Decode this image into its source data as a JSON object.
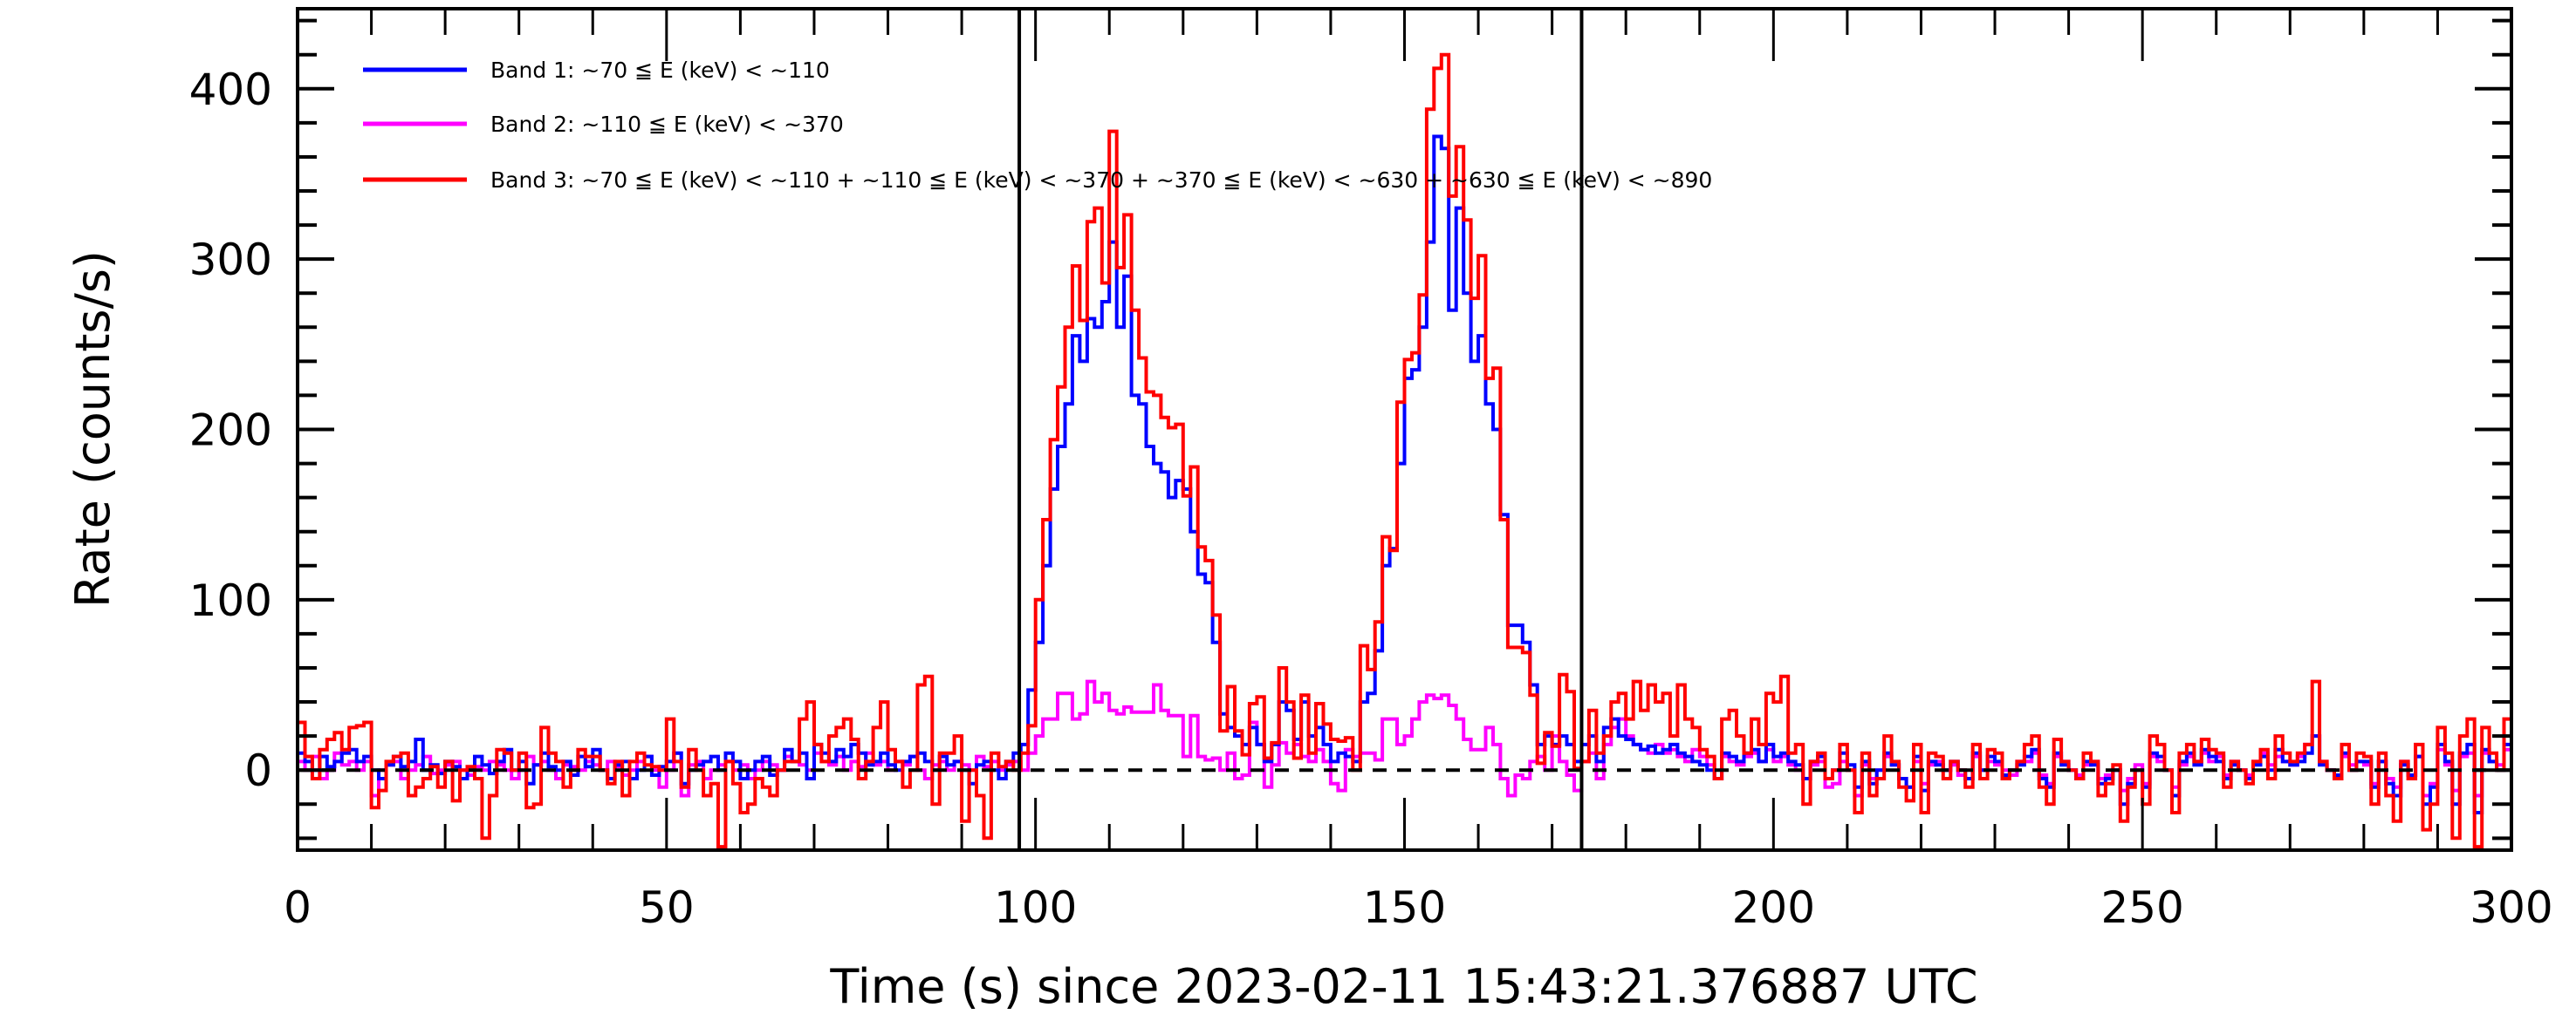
{
  "chart_data": {
    "type": "line",
    "style": "histogram-steps",
    "title": "",
    "xlabel": "Time (s) since 2023-02-11 15:43:21.376887 UTC",
    "ylabel": "Rate (counts/s)",
    "xlim": [
      0,
      300
    ],
    "ylim": [
      -47,
      447
    ],
    "xticks": [
      0,
      50,
      100,
      150,
      200,
      250,
      300
    ],
    "xtick_labels": [
      "0",
      "50",
      "100",
      "150",
      "200",
      "250",
      "300"
    ],
    "yticks": [
      0,
      100,
      200,
      300,
      400
    ],
    "ytick_labels": [
      "0",
      "100",
      "200",
      "300",
      "400"
    ],
    "x_minor_step": 10,
    "y_minor_step": 20,
    "grid": false,
    "legend_position": "top-left",
    "bin_width": 1,
    "x_start": 0,
    "hlines": [
      {
        "y": 0,
        "style": "dashed",
        "color": "#000000"
      }
    ],
    "vlines": [
      {
        "x": 97.8,
        "color": "#000000"
      },
      {
        "x": 174.0,
        "color": "#000000"
      }
    ],
    "series": [
      {
        "name": "Band 1: ~70 ≦ E (keV) < ~110",
        "color": "#0000FF",
        "values": [
          10,
          5,
          0,
          8,
          2,
          5,
          10,
          12,
          5,
          8,
          0,
          -5,
          3,
          8,
          2,
          5,
          18,
          0,
          3,
          -2,
          5,
          2,
          -5,
          0,
          8,
          3,
          -2,
          5,
          12,
          0,
          5,
          -8,
          3,
          10,
          2,
          0,
          5,
          -3,
          8,
          2,
          12,
          0,
          -5,
          3,
          5,
          -5,
          0,
          8,
          -3,
          2,
          5,
          10,
          -8,
          0,
          3,
          5,
          8,
          0,
          10,
          5,
          -5,
          0,
          5,
          8,
          -3,
          0,
          12,
          5,
          10,
          -5,
          15,
          10,
          5,
          12,
          8,
          15,
          10,
          3,
          5,
          10,
          3,
          0,
          5,
          8,
          10,
          5,
          0,
          8,
          3,
          5,
          0,
          -8,
          3,
          5,
          0,
          -5,
          5,
          10,
          15,
          47,
          75,
          120,
          165,
          190,
          215,
          255,
          240,
          265,
          260,
          275,
          310,
          260,
          290,
          220,
          215,
          190,
          180,
          175,
          160,
          170,
          165,
          140,
          115,
          110,
          75,
          33,
          25,
          20,
          15,
          25,
          15,
          5,
          15,
          40,
          35,
          18,
          40,
          20,
          25,
          15,
          5,
          10,
          8,
          5,
          40,
          45,
          70,
          120,
          130,
          180,
          230,
          235,
          260,
          310,
          372,
          365,
          270,
          330,
          280,
          240,
          255,
          215,
          200,
          150,
          85,
          85,
          75,
          50,
          15,
          20,
          15,
          20,
          15,
          5,
          15,
          20,
          5,
          25,
          30,
          20,
          18,
          15,
          12,
          14,
          10,
          12,
          15,
          10,
          8,
          5,
          3,
          0,
          -5,
          10,
          8,
          5,
          10,
          12,
          5,
          15,
          8,
          10,
          5,
          3,
          -5,
          5,
          8,
          -5,
          0,
          10,
          3,
          -10,
          5,
          -8,
          0,
          10,
          3,
          -5,
          -10,
          8,
          -12,
          5,
          3,
          0,
          5,
          0,
          -5,
          10,
          0,
          8,
          5,
          -3,
          0,
          3,
          8,
          12,
          -5,
          -10,
          10,
          3,
          0,
          -5,
          5,
          3,
          -8,
          -5,
          0,
          -20,
          -8,
          0,
          -10,
          10,
          8,
          0,
          -15,
          5,
          10,
          3,
          12,
          8,
          5,
          -5,
          3,
          0,
          -5,
          3,
          8,
          0,
          12,
          5,
          3,
          5,
          10,
          20,
          3,
          0,
          -3,
          10,
          0,
          5,
          5,
          -10,
          5,
          -8,
          -15,
          3,
          -3,
          8,
          -20,
          -10,
          15,
          5,
          -20,
          10,
          15,
          -25,
          12,
          5,
          0,
          15
        ]
      },
      {
        "name": "Band 2: ~110 ≦ E (keV) < ~370",
        "color": "#FF00FF",
        "values": [
          5,
          0,
          8,
          -5,
          0,
          10,
          3,
          5,
          0,
          5,
          -15,
          0,
          3,
          5,
          -5,
          0,
          3,
          8,
          -2,
          0,
          3,
          5,
          0,
          -3,
          2,
          0,
          5,
          3,
          0,
          -5,
          0,
          8,
          3,
          5,
          0,
          -5,
          3,
          2,
          0,
          5,
          3,
          0,
          5,
          2,
          -3,
          0,
          5,
          8,
          0,
          -10,
          0,
          10,
          -15,
          3,
          5,
          -5,
          0,
          3,
          5,
          0,
          3,
          -5,
          0,
          5,
          3,
          0,
          8,
          5,
          3,
          0,
          10,
          5,
          3,
          8,
          0,
          5,
          2,
          10,
          3,
          5,
          0,
          5,
          3,
          8,
          0,
          -5,
          3,
          5,
          0,
          5,
          3,
          0,
          8,
          2,
          5,
          0,
          3,
          5,
          0,
          10,
          20,
          30,
          30,
          45,
          45,
          30,
          33,
          52,
          40,
          45,
          35,
          33,
          37,
          34,
          34,
          34,
          50,
          35,
          32,
          32,
          8,
          32,
          8,
          6,
          7,
          0,
          10,
          -5,
          -3,
          28,
          15,
          -10,
          3,
          16,
          10,
          15,
          8,
          5,
          12,
          5,
          -8,
          -12,
          12,
          8,
          10,
          10,
          6,
          30,
          30,
          15,
          20,
          30,
          40,
          44,
          42,
          44,
          38,
          30,
          18,
          12,
          12,
          25,
          15,
          -5,
          -15,
          -3,
          -5,
          5,
          8,
          0,
          20,
          5,
          -3,
          -12,
          5,
          10,
          -5,
          15,
          25,
          30,
          20,
          15,
          12,
          10,
          15,
          10,
          12,
          8,
          5,
          12,
          8,
          3,
          -5,
          8,
          5,
          3,
          8,
          10,
          5,
          12,
          5,
          8,
          3,
          0,
          -5,
          3,
          5,
          -10,
          -8,
          5,
          0,
          -15,
          3,
          -5,
          0,
          8,
          3,
          -5,
          -10,
          5,
          -8,
          3,
          5,
          0,
          3,
          -3,
          -5,
          8,
          0,
          5,
          3,
          0,
          -3,
          5,
          5,
          10,
          -3,
          -8,
          8,
          5,
          0,
          -3,
          3,
          5,
          -5,
          -3,
          0,
          -12,
          -5,
          3,
          -8,
          8,
          5,
          0,
          -10,
          3,
          8,
          5,
          10,
          5,
          8,
          -3,
          5,
          0,
          -3,
          5,
          10,
          3,
          8,
          5,
          3,
          8,
          15,
          20,
          5,
          0,
          -5,
          8,
          3,
          5,
          3,
          -8,
          5,
          -5,
          -10,
          5,
          -3,
          8,
          -15,
          -8,
          12,
          3,
          -12,
          8,
          10,
          -15,
          10,
          5,
          3,
          12
        ]
      },
      {
        "name": "Band 3: ~70 ≦ E (keV) < ~110 + ~110 ≦ E (keV) < ~370 + ~370 ≦ E (keV) < ~630 + ~630 ≦ E (keV) < ~890",
        "color": "#FF0000",
        "values": [
          28,
          8,
          -5,
          12,
          18,
          22,
          12,
          25,
          26,
          28,
          -22,
          -12,
          5,
          8,
          10,
          -15,
          -10,
          -5,
          2,
          -10,
          5,
          -18,
          0,
          2,
          -5,
          -40,
          -15,
          12,
          10,
          0,
          10,
          -22,
          -20,
          25,
          10,
          5,
          -10,
          0,
          12,
          8,
          8,
          0,
          -8,
          5,
          -15,
          5,
          10,
          3,
          2,
          0,
          30,
          5,
          -10,
          12,
          0,
          -15,
          -8,
          -45,
          5,
          -8,
          -25,
          -20,
          -5,
          -10,
          -15,
          0,
          5,
          5,
          30,
          40,
          15,
          5,
          20,
          25,
          30,
          18,
          -5,
          5,
          25,
          40,
          12,
          5,
          -10,
          0,
          50,
          55,
          -20,
          10,
          10,
          20,
          -30,
          0,
          -15,
          -40,
          10,
          2,
          5,
          0,
          10,
          26,
          100,
          147,
          194,
          225,
          260,
          296,
          264,
          322,
          330,
          286,
          375,
          295,
          326,
          270,
          242,
          222,
          220,
          207,
          201,
          203,
          161,
          178,
          131,
          123,
          91,
          23,
          49,
          23,
          9,
          39,
          43,
          7,
          16,
          60,
          40,
          7,
          44,
          10,
          39,
          27,
          18,
          17,
          19,
          0,
          73,
          59,
          87,
          137,
          129,
          216,
          241,
          245,
          279,
          388,
          412,
          420,
          337,
          366,
          323,
          277,
          302,
          230,
          236,
          147,
          72,
          72,
          69,
          44,
          4,
          22,
          14,
          56,
          46,
          1,
          5,
          35,
          10,
          20,
          40,
          45,
          30,
          52,
          35,
          50,
          40,
          45,
          20,
          50,
          30,
          25,
          12,
          8,
          -5,
          30,
          35,
          20,
          10,
          30,
          15,
          45,
          40,
          55,
          10,
          15,
          -20,
          5,
          10,
          -5,
          0,
          15,
          0,
          -25,
          10,
          -15,
          -5,
          20,
          5,
          -10,
          -18,
          15,
          -25,
          10,
          8,
          -5,
          5,
          0,
          -10,
          15,
          -5,
          12,
          10,
          -5,
          0,
          5,
          15,
          20,
          -10,
          -20,
          18,
          5,
          0,
          -5,
          10,
          5,
          -15,
          -8,
          3,
          -30,
          -10,
          0,
          -20,
          20,
          15,
          0,
          -25,
          10,
          15,
          5,
          18,
          12,
          10,
          -10,
          5,
          0,
          -8,
          5,
          12,
          -5,
          20,
          10,
          5,
          10,
          15,
          52,
          5,
          0,
          -5,
          15,
          0,
          10,
          8,
          -20,
          10,
          -15,
          -30,
          5,
          -5,
          15,
          -35,
          -20,
          25,
          10,
          -40,
          20,
          30,
          -45,
          25,
          10,
          0,
          30
        ]
      }
    ]
  }
}
